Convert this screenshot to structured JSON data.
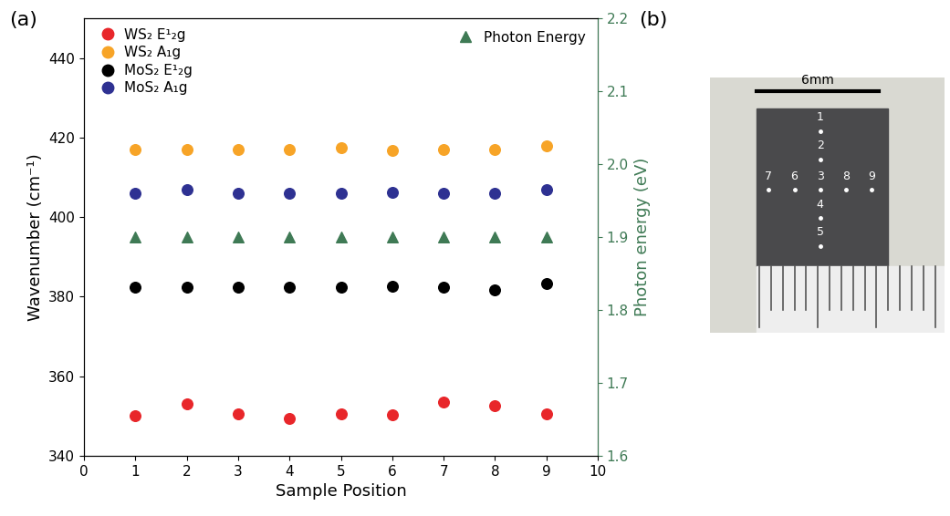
{
  "chart_data": {
    "type": "scatter",
    "panel_label": "(a)",
    "x_label": "Sample Position",
    "y_label": "Wavenumber (cm⁻¹)",
    "y2_label": "Photon energy (eV)",
    "x": [
      1,
      2,
      3,
      4,
      5,
      6,
      7,
      8,
      9
    ],
    "xlim": [
      0,
      10
    ],
    "xticks": [
      0,
      1,
      2,
      3,
      4,
      5,
      6,
      7,
      8,
      9,
      10
    ],
    "ylim": [
      340,
      450
    ],
    "yticks": [
      340,
      360,
      380,
      400,
      420,
      440
    ],
    "y2lim": [
      1.6,
      2.2
    ],
    "y2ticks": [
      1.6,
      1.7,
      1.8,
      1.9,
      2.0,
      2.1,
      2.2
    ],
    "legend": "upper left",
    "grid": false,
    "series": [
      {
        "name": "WS₂ E¹₂g",
        "color": "#e8262a",
        "marker": "circle",
        "values": [
          350,
          353,
          350.5,
          349.5,
          350.5,
          350.3,
          353.5,
          352.5,
          350.5
        ]
      },
      {
        "name": "WS₂ A₁g",
        "color": "#f7a427",
        "marker": "circle",
        "values": [
          417,
          417,
          417,
          417,
          417.5,
          416.8,
          417,
          417,
          418
        ]
      },
      {
        "name": "MoS₂ E¹₂g",
        "color": "#000000",
        "marker": "circle",
        "values": [
          382.3,
          382.3,
          382.3,
          382.3,
          382.3,
          382.7,
          382.3,
          381.8,
          383.3
        ]
      },
      {
        "name": "MoS₂ A₁g",
        "color": "#2e3192",
        "marker": "circle",
        "values": [
          406,
          407,
          406,
          406,
          406,
          406.3,
          406,
          406,
          407
        ]
      },
      {
        "name": "Photon Energy",
        "color": "#3f7a55",
        "marker": "triangle",
        "axis": "y2",
        "values": [
          1.9,
          1.9,
          1.9,
          1.9,
          1.9,
          1.9,
          1.9,
          1.9,
          1.9
        ]
      }
    ]
  },
  "image_panel": {
    "panel_label": "(b)",
    "scale_bar": "6mm",
    "points": [
      "1",
      "2",
      "3",
      "4",
      "5",
      "6",
      "7",
      "8",
      "9"
    ]
  }
}
